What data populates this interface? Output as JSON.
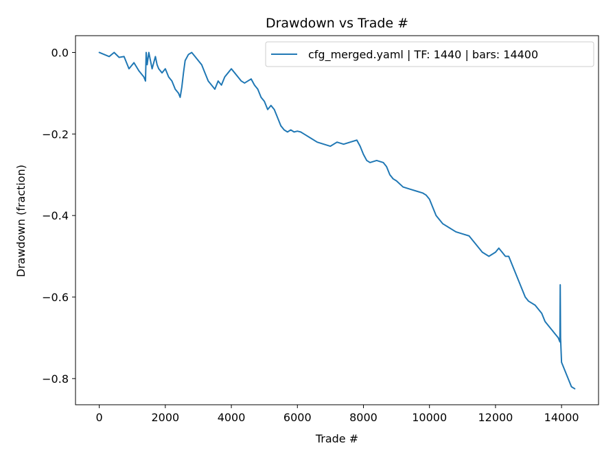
{
  "chart_data": {
    "type": "line",
    "title": "Drawdown vs Trade #",
    "xlabel": "Trade #",
    "ylabel": "Drawdown (fraction)",
    "xlim": [
      -720,
      15120
    ],
    "ylim": [
      -0.8642,
      0.0412
    ],
    "xticks": [
      0,
      2000,
      4000,
      6000,
      8000,
      10000,
      12000,
      14000
    ],
    "xtick_labels": [
      "0",
      "2000",
      "4000",
      "6000",
      "8000",
      "10000",
      "12000",
      "14000"
    ],
    "yticks": [
      0.0,
      -0.2,
      -0.4,
      -0.6,
      -0.8
    ],
    "ytick_labels": [
      "0.0",
      "−0.2",
      "−0.4",
      "−0.6",
      "−0.8"
    ],
    "grid": false,
    "legend_position": "top-right",
    "series": [
      {
        "name": "cfg_merged.yaml | TF: 1440 | bars: 14400",
        "color": "#1f77b4",
        "x": [
          0,
          150,
          300,
          450,
          600,
          750,
          900,
          1050,
          1200,
          1350,
          1400,
          1420,
          1450,
          1500,
          1600,
          1700,
          1750,
          1800,
          1900,
          2000,
          2100,
          2200,
          2300,
          2400,
          2450,
          2500,
          2550,
          2600,
          2700,
          2800,
          2900,
          3000,
          3100,
          3200,
          3300,
          3400,
          3500,
          3600,
          3700,
          3800,
          3900,
          4000,
          4100,
          4200,
          4300,
          4400,
          4500,
          4600,
          4700,
          4800,
          4900,
          5000,
          5100,
          5200,
          5300,
          5400,
          5500,
          5600,
          5700,
          5800,
          5900,
          6000,
          6100,
          6200,
          6400,
          6600,
          6800,
          7000,
          7200,
          7400,
          7600,
          7800,
          7900,
          8000,
          8100,
          8200,
          8400,
          8600,
          8700,
          8800,
          8900,
          9000,
          9200,
          9400,
          9600,
          9800,
          9900,
          10000,
          10100,
          10200,
          10400,
          10600,
          10800,
          11000,
          11200,
          11400,
          11600,
          11800,
          12000,
          12100,
          12200,
          12300,
          12400,
          12500,
          12600,
          12700,
          12800,
          12900,
          13000,
          13200,
          13400,
          13500,
          13600,
          13700,
          13800,
          13900,
          13950,
          13960,
          13970,
          13990,
          14000,
          14100,
          14200,
          14300,
          14400
        ],
        "y": [
          0.0,
          -0.005,
          -0.01,
          0.0,
          -0.012,
          -0.01,
          -0.04,
          -0.025,
          -0.045,
          -0.06,
          -0.07,
          0.0,
          -0.03,
          0.0,
          -0.04,
          -0.01,
          -0.03,
          -0.04,
          -0.05,
          -0.04,
          -0.06,
          -0.07,
          -0.09,
          -0.1,
          -0.11,
          -0.085,
          -0.05,
          -0.02,
          -0.005,
          0.0,
          -0.01,
          -0.02,
          -0.03,
          -0.05,
          -0.07,
          -0.08,
          -0.09,
          -0.07,
          -0.08,
          -0.06,
          -0.05,
          -0.04,
          -0.05,
          -0.06,
          -0.07,
          -0.075,
          -0.07,
          -0.065,
          -0.08,
          -0.09,
          -0.11,
          -0.12,
          -0.14,
          -0.13,
          -0.14,
          -0.16,
          -0.18,
          -0.19,
          -0.195,
          -0.19,
          -0.195,
          -0.193,
          -0.195,
          -0.2,
          -0.21,
          -0.22,
          -0.225,
          -0.23,
          -0.22,
          -0.225,
          -0.22,
          -0.215,
          -0.23,
          -0.25,
          -0.265,
          -0.27,
          -0.265,
          -0.27,
          -0.28,
          -0.3,
          -0.31,
          -0.315,
          -0.33,
          -0.335,
          -0.34,
          -0.345,
          -0.35,
          -0.36,
          -0.38,
          -0.4,
          -0.42,
          -0.43,
          -0.44,
          -0.445,
          -0.45,
          -0.47,
          -0.49,
          -0.5,
          -0.49,
          -0.48,
          -0.49,
          -0.5,
          -0.5,
          -0.52,
          -0.54,
          -0.56,
          -0.58,
          -0.6,
          -0.61,
          -0.62,
          -0.64,
          -0.66,
          -0.67,
          -0.68,
          -0.69,
          -0.7,
          -0.71,
          -0.57,
          -0.7,
          -0.74,
          -0.76,
          -0.78,
          -0.8,
          -0.82,
          -0.825
        ]
      }
    ]
  }
}
